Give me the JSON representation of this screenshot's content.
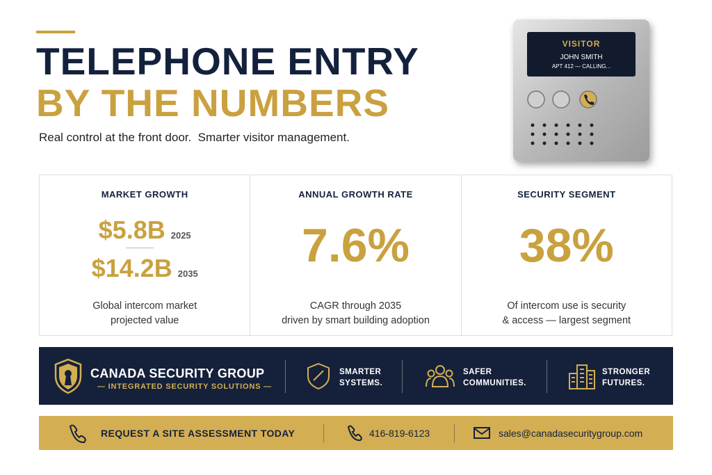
{
  "header": {
    "title_line1": "TELEPHONE ENTRY",
    "title_line2": "BY THE NUMBERS",
    "subtitle": "Real control at the front door.  Smarter visitor management."
  },
  "intercom": {
    "screen_label": "VISITOR",
    "caller_name": "JOHN SMITH",
    "status": "APT 412 — CALLING..."
  },
  "stats": [
    {
      "heading": "MARKET GROWTH",
      "figures": [
        {
          "value": "$5.8B",
          "year": "2025"
        },
        {
          "value": "$14.2B",
          "year": "2035"
        }
      ],
      "description": [
        "Global intercom market",
        "projected value"
      ]
    },
    {
      "heading": "ANNUAL GROWTH RATE",
      "value": "7.6%",
      "description": [
        "CAGR through 2035",
        "driven by smart building adoption"
      ]
    },
    {
      "heading": "SECURITY SEGMENT",
      "value": "38%",
      "description": [
        "Of intercom use is security",
        "& access — largest segment"
      ]
    }
  ],
  "brand": {
    "name": "CANADA SECURITY GROUP",
    "tagline": "— INTEGRATED SECURITY SOLUTIONS —"
  },
  "pillars": [
    [
      "SMARTER",
      "SYSTEMS."
    ],
    [
      "SAFER",
      "COMMUNITIES."
    ],
    [
      "STRONGER",
      "FUTURES."
    ]
  ],
  "cta": {
    "text": "REQUEST A SITE ASSESSMENT TODAY",
    "phone": "416-819-6123",
    "email": "sales@canadasecuritygroup.com"
  }
}
